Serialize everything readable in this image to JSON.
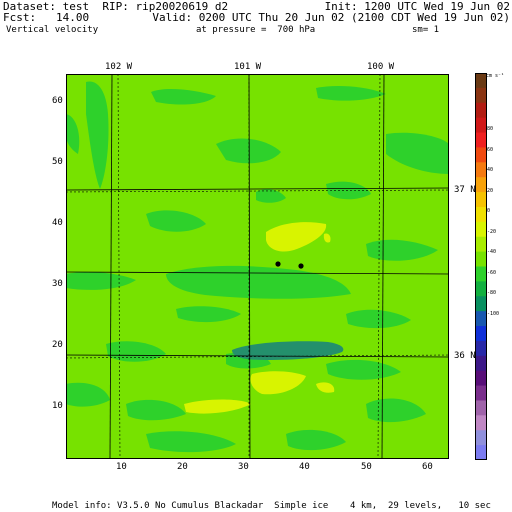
{
  "header": {
    "dataset": "Dataset: test  RIP: rip20020619 d2",
    "init": "Init: 1200 UTC Wed 19 Jun 02",
    "fcst": "Fcst:   14.00",
    "valid": "Valid: 0200 UTC Thu 20 Jun 02 (2100 CDT Wed 19 Jun 02)",
    "field": "Vertical velocity",
    "pressure": "at pressure =  700 hPa",
    "smoothing": "sm= 1"
  },
  "footer": {
    "model_info": "Model info: V3.5.0 No Cumulus Blackadar  Simple ice    4 km,  29 levels,   10 sec"
  },
  "map": {
    "longitude_labels": [
      "102 W",
      "101 W",
      "100 W"
    ],
    "latitude_labels": [
      "37 N",
      "36 N"
    ],
    "x_ticks": [
      "10",
      "20",
      "30",
      "40",
      "50",
      "60"
    ],
    "y_ticks": [
      "60",
      "50",
      "40",
      "30",
      "20",
      "10"
    ],
    "colors": {
      "zero_band": "#77e200",
      "positive_band": "#d8f400",
      "negative_band": "#2ed12b",
      "strong_negative": "#24906c",
      "line": "#000000"
    }
  },
  "colorbar": {
    "units": "cm s⁻¹",
    "labels": [
      "80",
      "60",
      "40",
      "20",
      "0",
      "-20",
      "-40",
      "-60",
      "-80",
      "-100"
    ],
    "colors": [
      "#6a3a14",
      "#8a3412",
      "#b21c12",
      "#d01818",
      "#ee2020",
      "#f04a10",
      "#f57a10",
      "#f7a20a",
      "#f5c200",
      "#f0e000",
      "#d8f400",
      "#a8ec00",
      "#77e200",
      "#2ed12b",
      "#12b040",
      "#089060",
      "#1858b0",
      "#1030d8",
      "#2828a8",
      "#3c1888",
      "#580e78",
      "#7a2e8c",
      "#a064aa",
      "#c088c4",
      "#9090dc",
      "#7c7cf0"
    ]
  }
}
